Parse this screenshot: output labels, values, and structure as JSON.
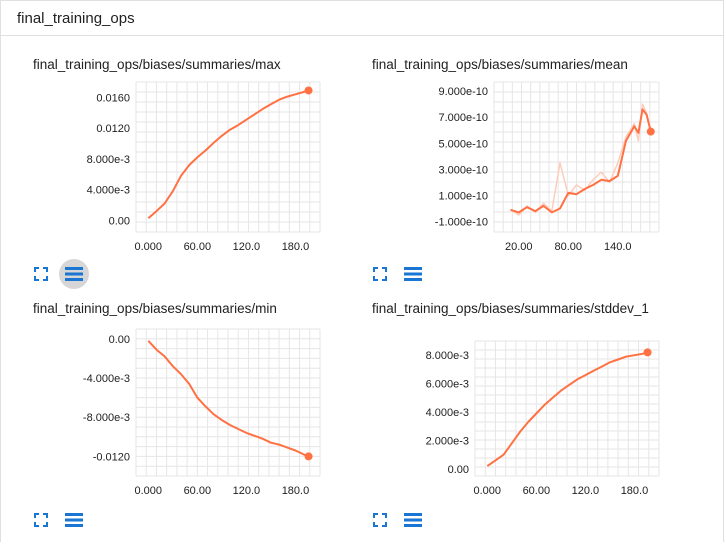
{
  "panel": {
    "title": "final_training_ops"
  },
  "colors": {
    "accent": "#ff7043",
    "accent_light": "#ffccbc",
    "icon_blue": "#1976d2",
    "grid": "#e6e6e6"
  },
  "icons": {
    "expand": "fullscreen-icon",
    "data": "list-icon"
  },
  "cards": [
    {
      "title": "final_training_ops/biases/summaries/max",
      "chart_data": {
        "type": "line",
        "x": [
          0,
          10,
          20,
          30,
          40,
          50,
          60,
          70,
          80,
          90,
          100,
          110,
          120,
          130,
          140,
          150,
          160,
          170,
          180,
          190,
          196
        ],
        "series": [
          {
            "values": [
              0.0003,
              0.0012,
              0.0022,
              0.0038,
              0.0058,
              0.0072,
              0.0082,
              0.0091,
              0.0101,
              0.011,
              0.0118,
              0.0124,
              0.0131,
              0.0138,
              0.0145,
              0.0151,
              0.0157,
              0.0161,
              0.0164,
              0.0167,
              0.0169
            ]
          }
        ],
        "xlim": [
          -15,
          210
        ],
        "ylim": [
          -0.0015,
          0.018
        ],
        "xticks": [
          0,
          60,
          120,
          180
        ],
        "xtick_labels": [
          "0.000",
          "60.00",
          "120.0",
          "180.0"
        ],
        "yticks": [
          0,
          0.004,
          0.008,
          0.012,
          0.016
        ],
        "ytick_labels": [
          "0.00",
          "4.000e-3",
          "8.000e-3",
          "0.0120",
          "0.0160"
        ]
      }
    },
    {
      "title": "final_training_ops/biases/summaries/mean",
      "chart_data": {
        "type": "line",
        "x": [
          10,
          20,
          30,
          40,
          50,
          60,
          70,
          80,
          90,
          100,
          110,
          120,
          130,
          140,
          150,
          160,
          165,
          170,
          175,
          180
        ],
        "series": [
          {
            "values": [
              -1e-11,
              -5e-11,
              2e-11,
              -3e-11,
              4e-11,
              -2e-11,
              3.5e-10,
              1e-10,
              1.8e-10,
              1.4e-10,
              2.2e-10,
              2.8e-10,
              2e-10,
              3.5e-10,
              5.5e-10,
              6.5e-10,
              5.2e-10,
              8e-10,
              7.3e-10,
              5.8e-10
            ]
          },
          {
            "values": [
              -1e-11,
              -3e-11,
              1e-11,
              -2e-11,
              2e-11,
              -3e-11,
              0,
              1.2e-10,
              1.1e-10,
              1.5e-10,
              1.8e-10,
              2.2e-10,
              2.1e-10,
              2.5e-10,
              5.2e-10,
              6.3e-10,
              5.8e-10,
              7.6e-10,
              7.2e-10,
              5.9e-10
            ]
          }
        ],
        "xlim": [
          -10,
          190
        ],
        "ylim": [
          -1.8e-10,
          9.7e-10
        ],
        "xticks": [
          20,
          80,
          140
        ],
        "xtick_labels": [
          "20.00",
          "80.00",
          "140.0"
        ],
        "yticks": [
          -1e-10,
          1e-10,
          3e-10,
          5e-10,
          7e-10,
          9e-10
        ],
        "ytick_labels": [
          "-1.000e-10",
          "1.000e-10",
          "3.000e-10",
          "5.000e-10",
          "7.000e-10",
          "9.000e-10"
        ]
      }
    },
    {
      "title": "final_training_ops/biases/summaries/min",
      "chart_data": {
        "type": "line",
        "x": [
          0,
          10,
          20,
          30,
          40,
          50,
          60,
          70,
          80,
          90,
          100,
          110,
          120,
          130,
          140,
          150,
          160,
          170,
          180,
          190,
          196
        ],
        "series": [
          {
            "values": [
              -0.0002,
              -0.0011,
              -0.0018,
              -0.0028,
              -0.0036,
              -0.0046,
              -0.006,
              -0.0069,
              -0.0077,
              -0.0083,
              -0.0088,
              -0.0092,
              -0.0096,
              -0.0099,
              -0.0102,
              -0.0106,
              -0.0108,
              -0.0111,
              -0.0114,
              -0.0118,
              -0.012
            ]
          }
        ],
        "xlim": [
          -15,
          210
        ],
        "ylim": [
          -0.014,
          0.001
        ],
        "xticks": [
          0,
          60,
          120,
          180
        ],
        "xtick_labels": [
          "0.000",
          "60.00",
          "120.0",
          "180.0"
        ],
        "yticks": [
          0,
          -0.004,
          -0.008,
          -0.012
        ],
        "ytick_labels": [
          "0.00",
          "-4.000e-3",
          "-8.000e-3",
          "-0.0120"
        ]
      }
    },
    {
      "title": "final_training_ops/biases/summaries/stddev_1",
      "chart_data": {
        "type": "line",
        "x": [
          0,
          10,
          20,
          30,
          40,
          50,
          60,
          70,
          80,
          90,
          100,
          110,
          120,
          130,
          140,
          150,
          160,
          170,
          180,
          190,
          196
        ],
        "series": [
          {
            "values": [
              0.0002,
              0.0006,
              0.001,
              0.0018,
              0.0026,
              0.0033,
              0.0039,
              0.0045,
              0.005,
              0.0055,
              0.0059,
              0.0063,
              0.0066,
              0.0069,
              0.0072,
              0.0075,
              0.0077,
              0.0079,
              0.008,
              0.0081,
              0.0082
            ]
          }
        ],
        "xlim": [
          -15,
          210
        ],
        "ylim": [
          -0.0005,
          0.009
        ],
        "xticks": [
          0,
          60,
          120,
          180
        ],
        "xtick_labels": [
          "0.000",
          "60.00",
          "120.0",
          "180.0"
        ],
        "yticks": [
          0,
          0.002,
          0.004,
          0.006,
          0.008
        ],
        "ytick_labels": [
          "0.00",
          "2.000e-3",
          "4.000e-3",
          "6.000e-3",
          "8.000e-3"
        ]
      }
    }
  ]
}
